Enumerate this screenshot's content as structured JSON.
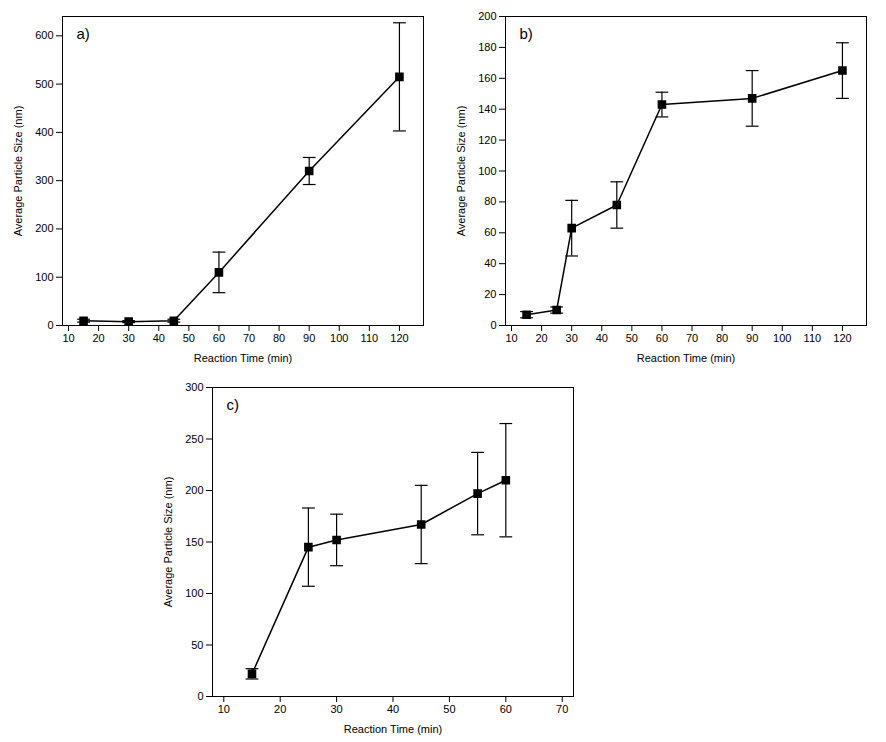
{
  "chart_data": [
    {
      "type": "line",
      "marker": "square",
      "color": "black",
      "xlabel": "Reaction Time (min)",
      "ylabel": "Average Particle Size (nm)",
      "annotations": [
        "a)"
      ],
      "x": [
        15,
        30,
        45,
        60,
        90,
        120
      ],
      "values": [
        10,
        8,
        10,
        110,
        320,
        515
      ],
      "yerr": [
        3,
        2,
        3,
        42,
        28,
        112
      ],
      "xlim": [
        8,
        128
      ],
      "ylim": [
        0,
        640
      ],
      "xticks": [
        10,
        20,
        30,
        40,
        50,
        60,
        70,
        80,
        90,
        100,
        110,
        120
      ],
      "yticks": [
        0,
        100,
        200,
        300,
        400,
        500,
        600
      ]
    },
    {
      "type": "line",
      "marker": "square",
      "color": "black",
      "xlabel": "Reaction Time (min)",
      "ylabel": "Average Particle Size (nm)",
      "annotations": [
        "b)"
      ],
      "x": [
        15,
        25,
        30,
        45,
        60,
        90,
        120
      ],
      "values": [
        7,
        10,
        63,
        78,
        143,
        147,
        165
      ],
      "yerr": [
        2,
        2,
        18,
        15,
        8,
        18,
        18
      ],
      "xlim": [
        8,
        128
      ],
      "ylim": [
        0,
        200
      ],
      "xticks": [
        10,
        20,
        30,
        40,
        50,
        60,
        70,
        80,
        90,
        100,
        110,
        120
      ],
      "yticks": [
        0,
        20,
        40,
        60,
        80,
        100,
        120,
        140,
        160,
        180,
        200
      ]
    },
    {
      "type": "line",
      "marker": "square",
      "color": "black",
      "xlabel": "Reaction Time (min)",
      "ylabel": "Average Particle Size (nm)",
      "annotations": [
        "c)"
      ],
      "x": [
        15,
        25,
        30,
        45,
        55,
        60
      ],
      "values": [
        22,
        145,
        152,
        167,
        197,
        210
      ],
      "yerr": [
        5,
        38,
        25,
        38,
        40,
        55
      ],
      "xlim": [
        8,
        72
      ],
      "ylim": [
        0,
        300
      ],
      "xticks": [
        10,
        20,
        30,
        40,
        50,
        60,
        70
      ],
      "yticks": [
        0,
        50,
        100,
        150,
        200,
        250,
        300
      ]
    }
  ]
}
